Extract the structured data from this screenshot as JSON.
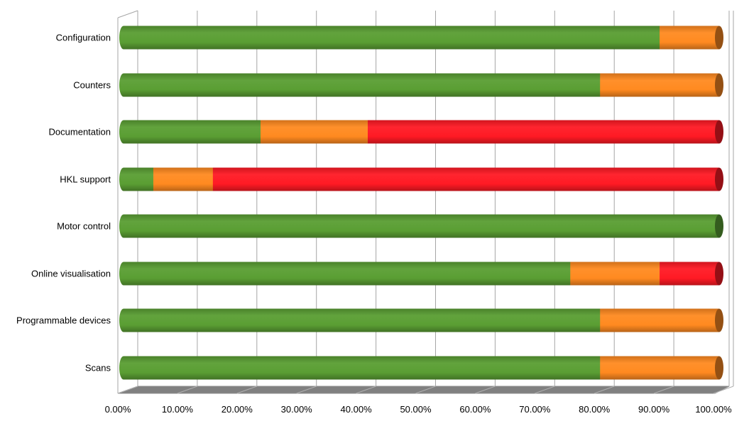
{
  "chart_data": {
    "type": "bar",
    "orientation": "horizontal",
    "stacked": "percent",
    "three_d": true,
    "title": "",
    "xlabel": "",
    "ylabel": "",
    "categories": [
      "Configuration",
      "Counters",
      "Documentation",
      "HKL support",
      "Motor control",
      "Online visualisation",
      "Programmable devices",
      "Scans"
    ],
    "series": [
      {
        "color": "#5a9e33",
        "values": [
          90,
          80,
          23,
          5,
          100,
          75,
          80,
          80
        ]
      },
      {
        "color": "#ff8a20",
        "values": [
          10,
          20,
          18,
          10,
          0,
          15,
          20,
          20
        ]
      },
      {
        "color": "#ff1a24",
        "values": [
          0,
          0,
          59,
          85,
          0,
          10,
          0,
          0
        ]
      }
    ],
    "xlim": [
      0,
      100
    ],
    "x_ticks": [
      "0.00%",
      "10.00%",
      "20.00%",
      "30.00%",
      "40.00%",
      "50.00%",
      "60.00%",
      "70.00%",
      "80.00%",
      "90.00%",
      "100.00%"
    ],
    "grid": true,
    "legend": "none"
  }
}
